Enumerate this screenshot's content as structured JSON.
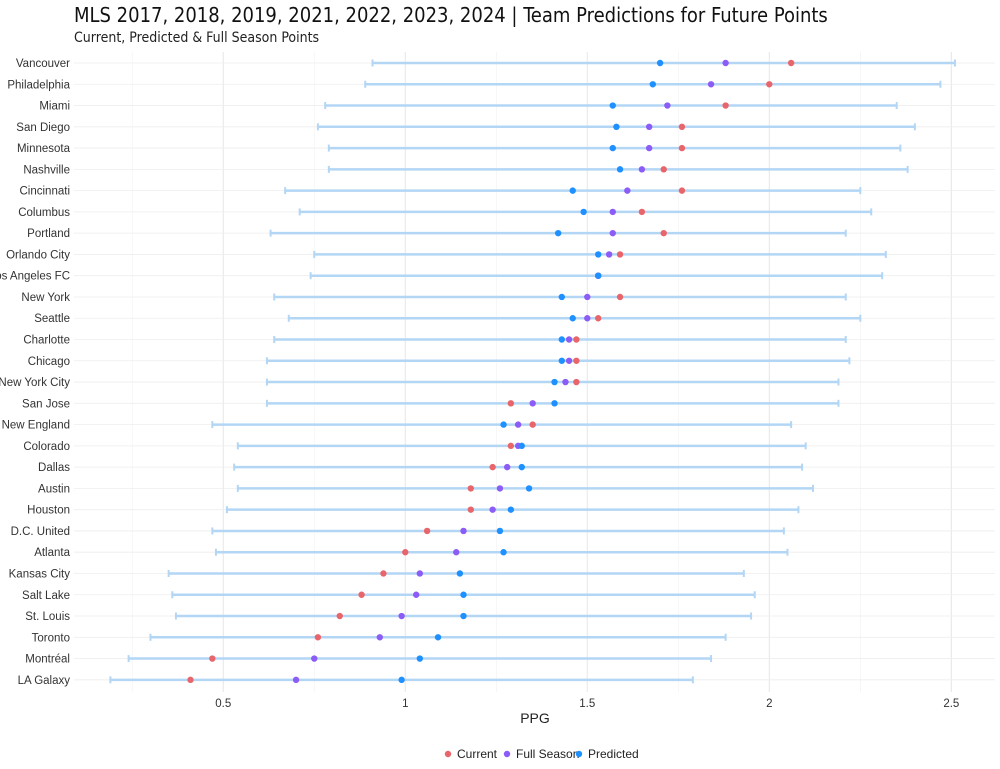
{
  "chart_data": {
    "type": "dot-range",
    "title": "MLS 2017, 2018, 2019, 2021, 2022, 2023, 2024 | Team Predictions for Future Points",
    "subtitle": "Current, Predicted & Full Season Points",
    "xlabel": "PPG",
    "ylabel": "",
    "xlim": [
      0.09,
      2.62
    ],
    "x_ticks": [
      "0.5",
      "1",
      "1.5",
      "2",
      "2.5"
    ],
    "grid": true,
    "legend_position": "bottom",
    "series": [
      {
        "name": "Current",
        "color": "#e8666b"
      },
      {
        "name": "Full Season",
        "color": "#8b5cf6"
      },
      {
        "name": "Predicted",
        "color": "#1e90ff"
      }
    ],
    "interval_color": "#b3d6f5",
    "teams": [
      {
        "name": "Vancouver",
        "low": 0.91,
        "high": 2.51,
        "current": 2.06,
        "full": 1.88,
        "predicted": 1.7
      },
      {
        "name": "Philadelphia",
        "low": 0.89,
        "high": 2.47,
        "current": 2.0,
        "full": 1.84,
        "predicted": 1.68
      },
      {
        "name": "Miami",
        "low": 0.78,
        "high": 2.35,
        "current": 1.88,
        "full": 1.72,
        "predicted": 1.57
      },
      {
        "name": "San Diego",
        "low": 0.76,
        "high": 2.4,
        "current": 1.76,
        "full": 1.67,
        "predicted": 1.58
      },
      {
        "name": "Minnesota",
        "low": 0.79,
        "high": 2.36,
        "current": 1.76,
        "full": 1.67,
        "predicted": 1.57
      },
      {
        "name": "Nashville",
        "low": 0.79,
        "high": 2.38,
        "current": 1.71,
        "full": 1.65,
        "predicted": 1.59
      },
      {
        "name": "Cincinnati",
        "low": 0.67,
        "high": 2.25,
        "current": 1.76,
        "full": 1.61,
        "predicted": 1.46
      },
      {
        "name": "Columbus",
        "low": 0.71,
        "high": 2.28,
        "current": 1.65,
        "full": 1.57,
        "predicted": 1.49
      },
      {
        "name": "Portland",
        "low": 0.63,
        "high": 2.21,
        "current": 1.71,
        "full": 1.57,
        "predicted": 1.42
      },
      {
        "name": "Orlando City",
        "low": 0.75,
        "high": 2.32,
        "current": 1.59,
        "full": 1.56,
        "predicted": 1.53
      },
      {
        "name": "Los Angeles FC",
        "low": 0.74,
        "high": 2.31,
        "current": 1.53,
        "full": 1.53,
        "predicted": 1.53
      },
      {
        "name": "New York",
        "low": 0.64,
        "high": 2.21,
        "current": 1.59,
        "full": 1.5,
        "predicted": 1.43
      },
      {
        "name": "Seattle",
        "low": 0.68,
        "high": 2.25,
        "current": 1.53,
        "full": 1.5,
        "predicted": 1.46
      },
      {
        "name": "Charlotte",
        "low": 0.64,
        "high": 2.21,
        "current": 1.47,
        "full": 1.45,
        "predicted": 1.43
      },
      {
        "name": "Chicago",
        "low": 0.62,
        "high": 2.22,
        "current": 1.47,
        "full": 1.45,
        "predicted": 1.43
      },
      {
        "name": "New York City",
        "low": 0.62,
        "high": 2.19,
        "current": 1.47,
        "full": 1.44,
        "predicted": 1.41
      },
      {
        "name": "San Jose",
        "low": 0.62,
        "high": 2.19,
        "current": 1.29,
        "full": 1.35,
        "predicted": 1.41
      },
      {
        "name": "New England",
        "low": 0.47,
        "high": 2.06,
        "current": 1.35,
        "full": 1.31,
        "predicted": 1.27
      },
      {
        "name": "Colorado",
        "low": 0.54,
        "high": 2.1,
        "current": 1.29,
        "full": 1.31,
        "predicted": 1.32
      },
      {
        "name": "Dallas",
        "low": 0.53,
        "high": 2.09,
        "current": 1.24,
        "full": 1.28,
        "predicted": 1.32
      },
      {
        "name": "Austin",
        "low": 0.54,
        "high": 2.12,
        "current": 1.18,
        "full": 1.26,
        "predicted": 1.34
      },
      {
        "name": "Houston",
        "low": 0.51,
        "high": 2.08,
        "current": 1.18,
        "full": 1.24,
        "predicted": 1.29
      },
      {
        "name": "D.C. United",
        "low": 0.47,
        "high": 2.04,
        "current": 1.06,
        "full": 1.16,
        "predicted": 1.26
      },
      {
        "name": "Atlanta",
        "low": 0.48,
        "high": 2.05,
        "current": 1.0,
        "full": 1.14,
        "predicted": 1.27
      },
      {
        "name": "Kansas City",
        "low": 0.35,
        "high": 1.93,
        "current": 0.94,
        "full": 1.04,
        "predicted": 1.15
      },
      {
        "name": "Salt Lake",
        "low": 0.36,
        "high": 1.96,
        "current": 0.88,
        "full": 1.03,
        "predicted": 1.16
      },
      {
        "name": "St. Louis",
        "low": 0.37,
        "high": 1.95,
        "current": 0.82,
        "full": 0.99,
        "predicted": 1.16
      },
      {
        "name": "Toronto",
        "low": 0.3,
        "high": 1.88,
        "current": 0.76,
        "full": 0.93,
        "predicted": 1.09
      },
      {
        "name": "Montréal",
        "low": 0.24,
        "high": 1.84,
        "current": 0.47,
        "full": 0.75,
        "predicted": 1.04
      },
      {
        "name": "LA Galaxy",
        "low": 0.19,
        "high": 1.79,
        "current": 0.41,
        "full": 0.7,
        "predicted": 0.99
      }
    ]
  }
}
